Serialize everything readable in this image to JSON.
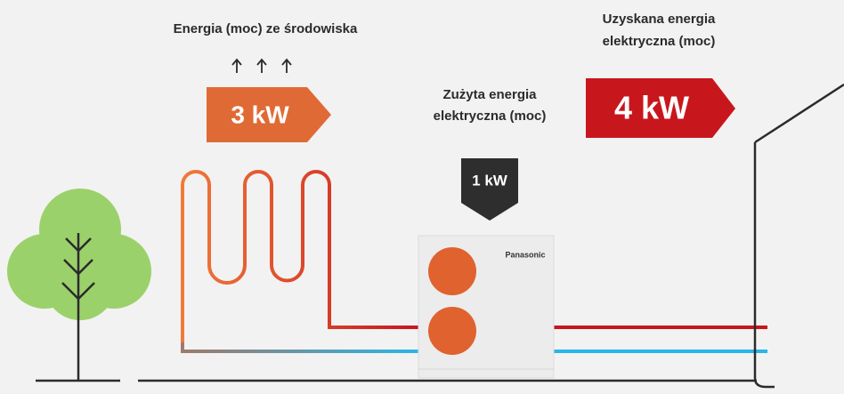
{
  "environment": {
    "label": "Energia (moc) ze środowiska",
    "value": "3 kW"
  },
  "consumed": {
    "label": [
      "Zużyta energia",
      "elektryczna (moc)"
    ],
    "value": "1 kW"
  },
  "obtained": {
    "label": [
      "Uzyskana energia",
      "elektryczna (moc)"
    ],
    "value": "4 kW"
  },
  "unit": {
    "brand": "Panasonic"
  }
}
